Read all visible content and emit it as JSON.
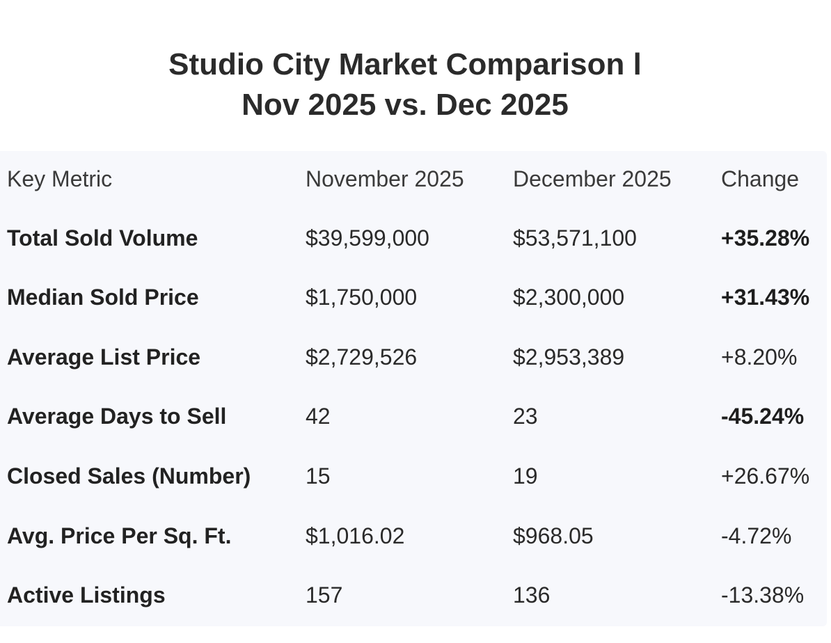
{
  "title": {
    "line1": "Studio City Market Comparison l",
    "line2": "Nov 2025 vs. Dec 2025"
  },
  "table": {
    "headers": [
      "Key Metric",
      "November 2025",
      "December 2025",
      "Change"
    ],
    "rows": [
      {
        "metric": "Total Sold Volume",
        "nov": "$39,599,000",
        "dec": "$53,571,100",
        "change": "+35.28%",
        "change_bold": true
      },
      {
        "metric": "Median Sold Price",
        "nov": "$1,750,000",
        "dec": "$2,300,000",
        "change": "+31.43%",
        "change_bold": true
      },
      {
        "metric": "Average List Price",
        "nov": "$2,729,526",
        "dec": "$2,953,389",
        "change": "+8.20%",
        "change_bold": false
      },
      {
        "metric": "Average Days to Sell",
        "nov": "42",
        "dec": "23",
        "change": "-45.24%",
        "change_bold": true
      },
      {
        "metric": "Closed Sales (Number)",
        "nov": "15",
        "dec": "19",
        "change": "+26.67%",
        "change_bold": false
      },
      {
        "metric": "Avg. Price Per Sq. Ft.",
        "nov": "$1,016.02",
        "dec": "$968.05",
        "change": "-4.72%",
        "change_bold": false
      },
      {
        "metric": "Active Listings",
        "nov": "157",
        "dec": "136",
        "change": "-13.38%",
        "change_bold": false
      }
    ]
  }
}
